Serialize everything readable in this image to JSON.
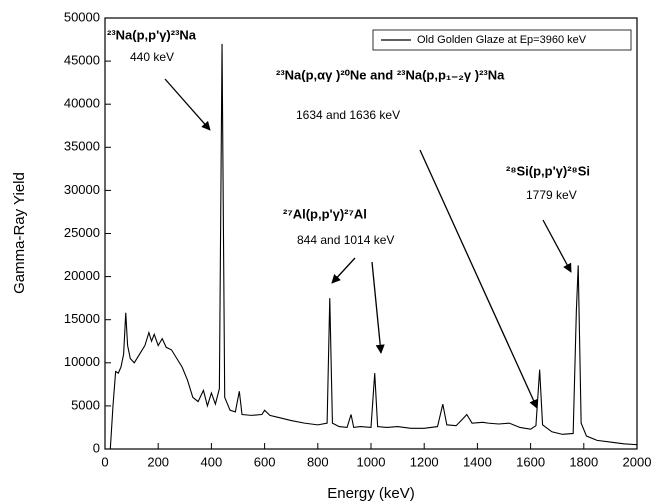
{
  "chart_data": {
    "type": "line",
    "xlabel": "Energy (keV)",
    "ylabel": "Gamma-Ray Yield",
    "xlim": [
      0,
      2000
    ],
    "xticks": [
      0,
      200,
      400,
      600,
      800,
      1000,
      1200,
      1400,
      1600,
      1800,
      2000
    ],
    "ylim": [
      0,
      50000
    ],
    "yticks": [
      0,
      5000,
      10000,
      15000,
      20000,
      25000,
      30000,
      35000,
      40000,
      45000,
      50000
    ],
    "grid": false,
    "legend": "upper right",
    "x": [
      20,
      30,
      40,
      50,
      60,
      70,
      78,
      85,
      95,
      110,
      130,
      150,
      165,
      175,
      185,
      200,
      215,
      230,
      250,
      270,
      290,
      310,
      330,
      350,
      370,
      385,
      400,
      415,
      430,
      440,
      450,
      470,
      490,
      505,
      515,
      550,
      590,
      600,
      620,
      660,
      700,
      750,
      800,
      835,
      845,
      855,
      880,
      910,
      925,
      935,
      960,
      1000,
      1014,
      1025,
      1060,
      1100,
      1150,
      1200,
      1250,
      1270,
      1285,
      1320,
      1345,
      1360,
      1380,
      1420,
      1440,
      1480,
      1520,
      1560,
      1600,
      1620,
      1634,
      1645,
      1680,
      1720,
      1760,
      1772,
      1779,
      1790,
      1810,
      1850,
      1900,
      1950,
      2000
    ],
    "series": [
      {
        "name": "Old Golden Glaze at Ep=3960 keV",
        "color": "#000000",
        "values": [
          0,
          5000,
          9000,
          8800,
          9500,
          11000,
          15800,
          12000,
          10500,
          10000,
          11000,
          12000,
          13500,
          12500,
          13300,
          12000,
          12800,
          11800,
          11500,
          10500,
          9500,
          8000,
          6000,
          5500,
          6800,
          5000,
          6500,
          5200,
          7000,
          47000,
          6000,
          4500,
          4300,
          6700,
          4000,
          3900,
          4000,
          4500,
          3900,
          3600,
          3300,
          3000,
          2800,
          3000,
          17500,
          3000,
          2600,
          2500,
          4000,
          2500,
          2600,
          2500,
          8800,
          2600,
          2500,
          2600,
          2400,
          2400,
          2600,
          5200,
          2800,
          2700,
          3500,
          4000,
          3000,
          3100,
          3000,
          2900,
          3000,
          2500,
          2300,
          2700,
          9200,
          2800,
          2000,
          1700,
          1800,
          16000,
          21300,
          3000,
          1500,
          1000,
          800,
          600,
          500
        ]
      }
    ],
    "annotations": [
      {
        "lines": [
          "²³Na(p,p'γ)²³Na",
          "440 keV"
        ]
      },
      {
        "lines": [
          "²³Na(p,αγ )²⁰Ne and ²³Na(p,p₁₋₂γ )²³Na",
          "1634 and 1636 keV"
        ]
      },
      {
        "lines": [
          "²⁷Al(p,p'γ)²⁷Al",
          "844 and 1014 keV"
        ]
      },
      {
        "lines": [
          "²⁸Si(p,p'γ)²⁸Si",
          "1779 keV"
        ]
      }
    ]
  }
}
